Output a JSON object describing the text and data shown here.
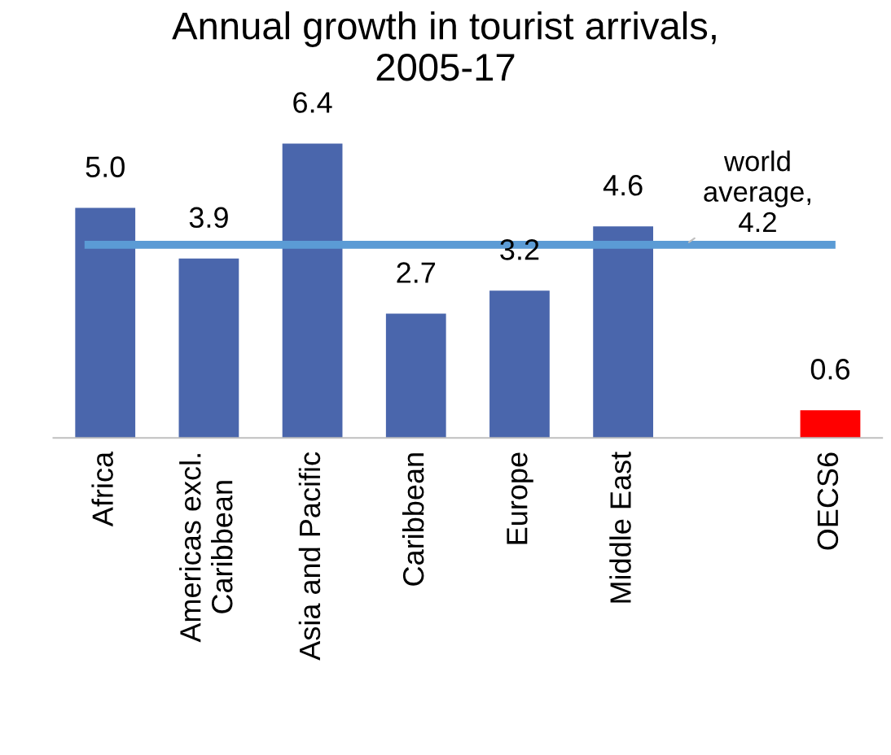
{
  "chart_data": {
    "type": "bar",
    "title": "Annual growth in tourist arrivals,\n2005-17",
    "categories": [
      "Africa",
      "Americas excl.\nCaribbean",
      "Asia and Pacific",
      "Caribbean",
      "Europe",
      "Middle East",
      null,
      "OECS6"
    ],
    "values": [
      5.0,
      3.9,
      6.4,
      2.7,
      3.2,
      4.6,
      null,
      0.6
    ],
    "colors": [
      "#4a66ac",
      "#4a66ac",
      "#4a66ac",
      "#4a66ac",
      "#4a66ac",
      "#4a66ac",
      "#4a66ac",
      "#ff0000"
    ],
    "value_labels": [
      "5.0",
      "3.9",
      "6.4",
      "2.7",
      "3.2",
      "4.6",
      null,
      "0.6"
    ],
    "ref_lines": [
      {
        "axis": "y",
        "value": 4.2,
        "label": "world\naverage,\n4.2",
        "color": "#5b9bd5"
      }
    ],
    "grid": false,
    "legend": false
  }
}
